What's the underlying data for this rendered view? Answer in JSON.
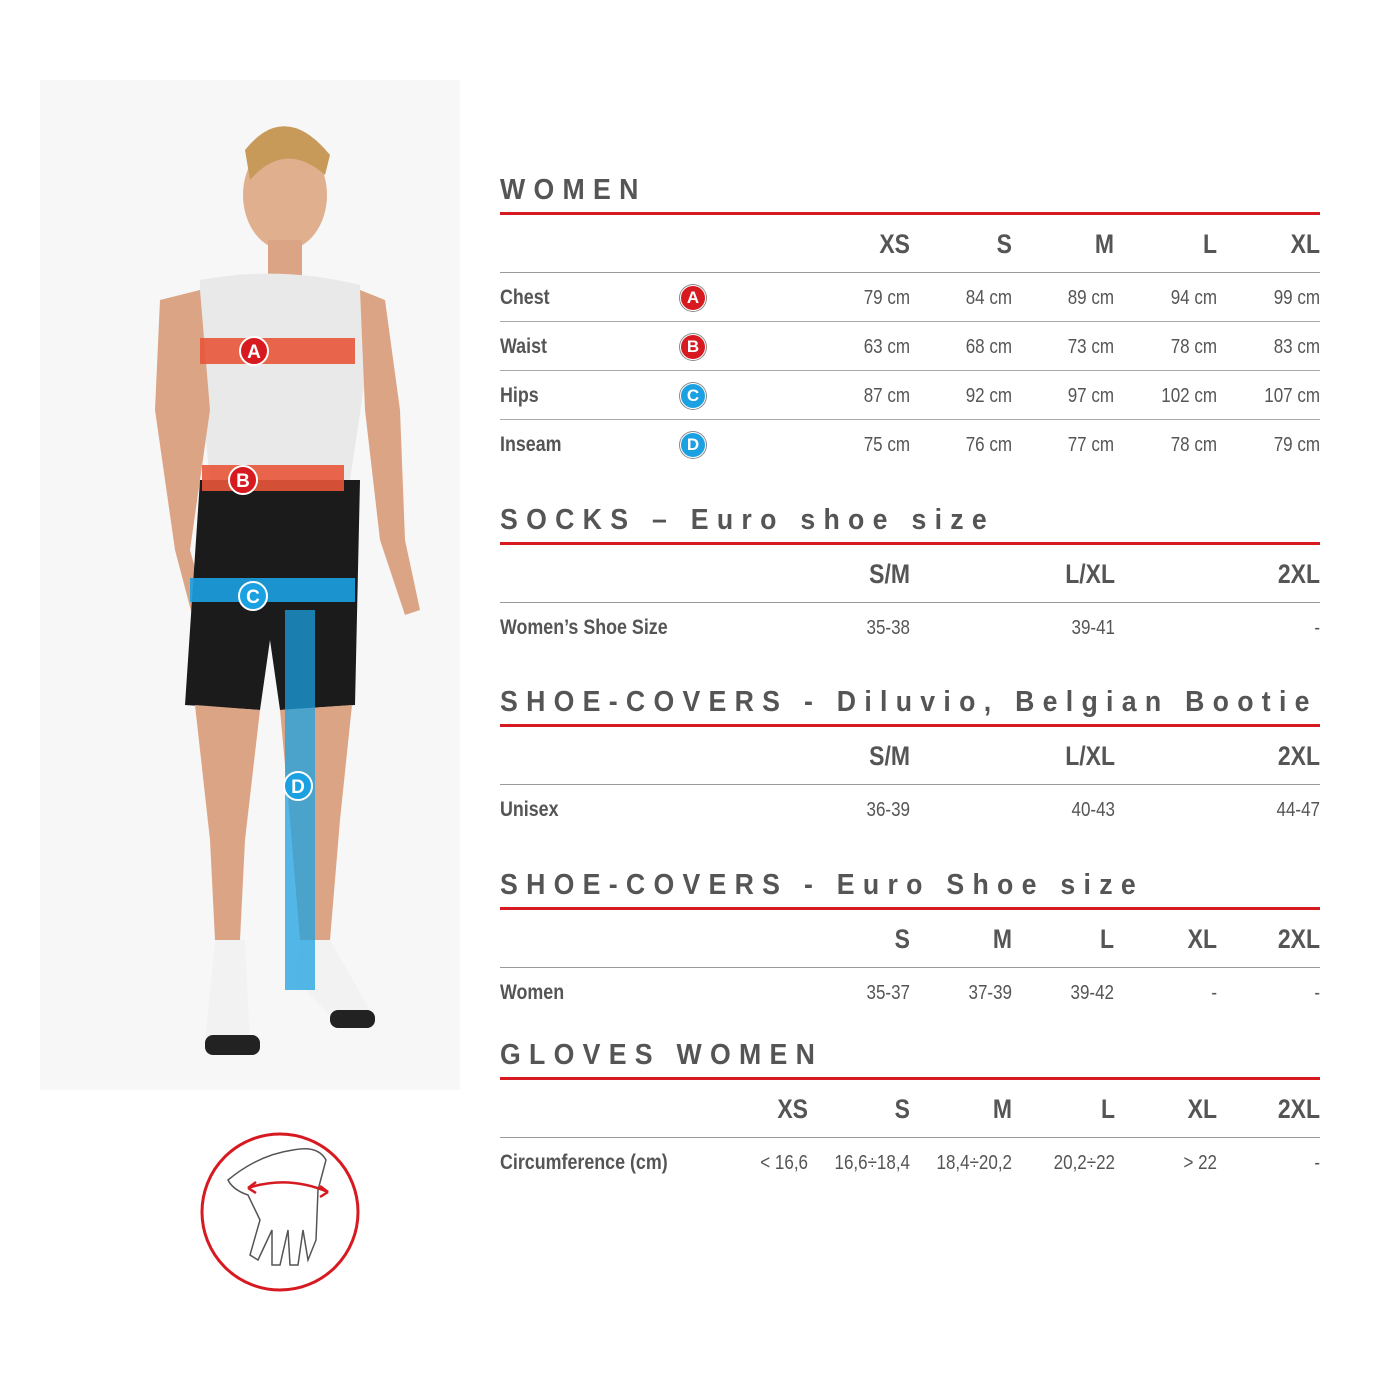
{
  "colors": {
    "accent": "#d71920",
    "text": "#555555",
    "badge_red": "#d71920",
    "badge_blue": "#1ba1e2",
    "band_red": "#e8553a",
    "band_blue": "#1ba1e2"
  },
  "figure": {
    "badges": [
      "A",
      "B",
      "C",
      "D"
    ]
  },
  "sections": [
    {
      "title": "WOMEN",
      "headers": [
        "XS",
        "S",
        "M",
        "L",
        "XL"
      ],
      "rows": [
        {
          "label": "Chest",
          "badge": "A",
          "badge_color": "red",
          "values": [
            "79 cm",
            "84 cm",
            "89 cm",
            "94 cm",
            "99 cm"
          ]
        },
        {
          "label": "Waist",
          "badge": "B",
          "badge_color": "red",
          "values": [
            "63 cm",
            "68 cm",
            "73 cm",
            "78 cm",
            "83 cm"
          ]
        },
        {
          "label": "Hips",
          "badge": "C",
          "badge_color": "blue",
          "values": [
            "87 cm",
            "92 cm",
            "97 cm",
            "102 cm",
            "107 cm"
          ]
        },
        {
          "label": "Inseam",
          "badge": "D",
          "badge_color": "blue",
          "values": [
            "75 cm",
            "76 cm",
            "77 cm",
            "78 cm",
            "79 cm"
          ]
        }
      ]
    },
    {
      "title": "SOCKS – Euro shoe size",
      "headers": [
        "S/M",
        "L/XL",
        "2XL"
      ],
      "rows": [
        {
          "label": "Women’s Shoe Size",
          "values": [
            "35-38",
            "39-41",
            "-"
          ]
        }
      ]
    },
    {
      "title": "SHOE-COVERS - Diluvio, Belgian Bootie",
      "headers": [
        "S/M",
        "L/XL",
        "2XL"
      ],
      "rows": [
        {
          "label": "Unisex",
          "values": [
            "36-39",
            "40-43",
            "44-47"
          ]
        }
      ]
    },
    {
      "title": "SHOE-COVERS - Euro Shoe size",
      "headers": [
        "S",
        "M",
        "L",
        "XL",
        "2XL"
      ],
      "rows": [
        {
          "label": "Women",
          "values": [
            "35-37",
            "37-39",
            "39-42",
            "-",
            "-"
          ]
        }
      ]
    },
    {
      "title": "GLOVES WOMEN",
      "headers": [
        "XS",
        "S",
        "M",
        "L",
        "XL",
        "2XL"
      ],
      "rows": [
        {
          "label": "Circumference (cm)",
          "values": [
            "< 16,6",
            "16,6÷18,4",
            "18,4÷20,2",
            "20,2÷22",
            "> 22",
            "-"
          ]
        }
      ]
    }
  ]
}
